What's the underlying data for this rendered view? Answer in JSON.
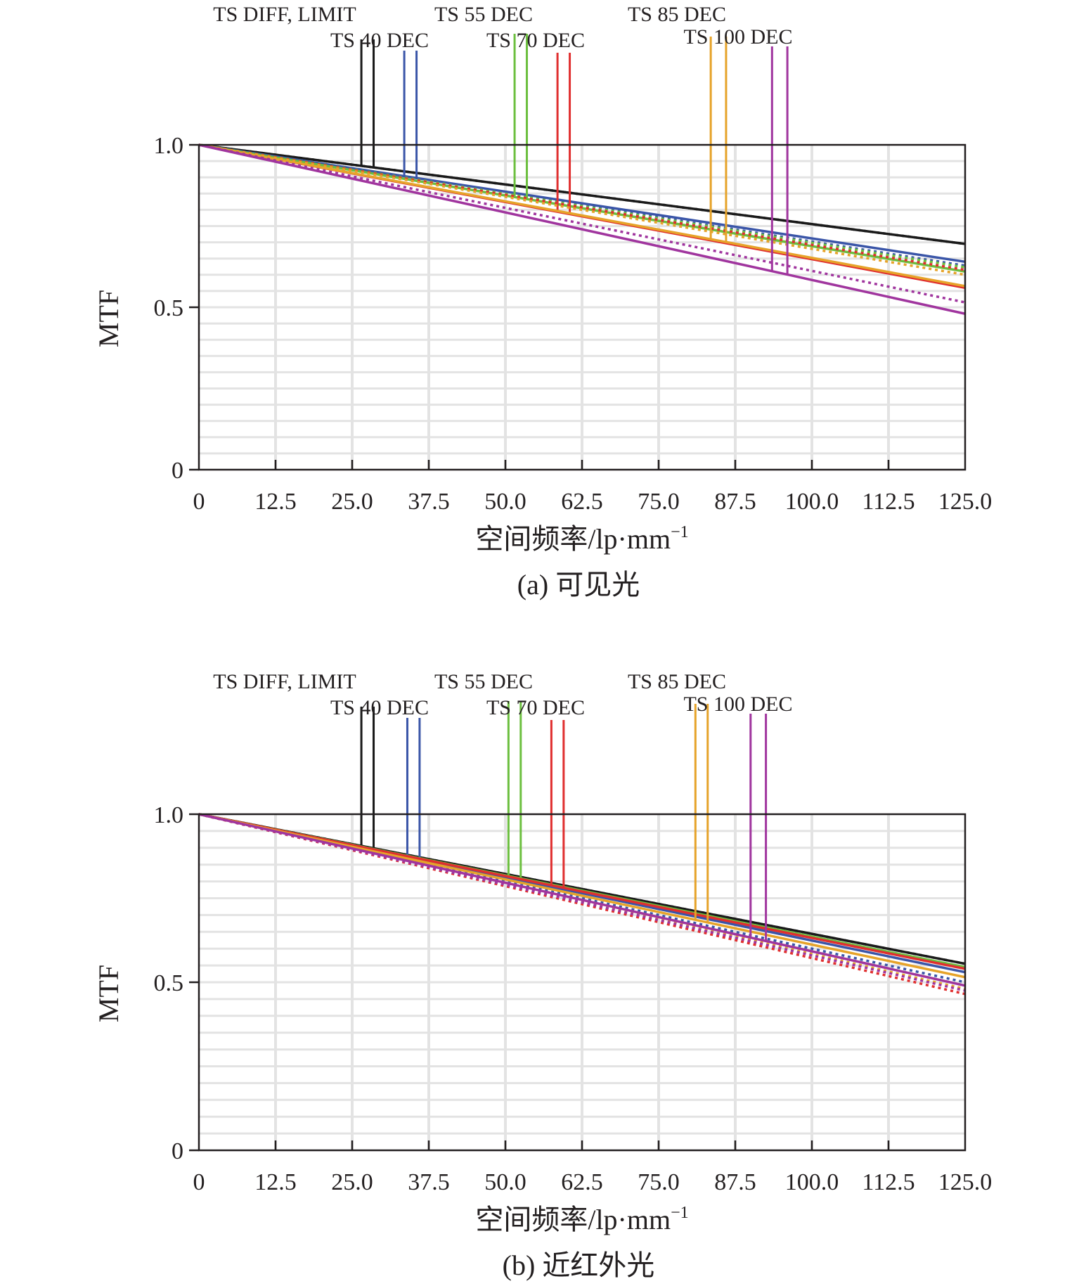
{
  "chart_data": [
    {
      "type": "line",
      "caption": "(a) 可见光",
      "xlabel": "空间频率/lp·mm",
      "xlabel_sup": "−1",
      "ylabel": "MTF",
      "xlim": [
        0,
        125
      ],
      "ylim": [
        0,
        1
      ],
      "xticks": [
        "0",
        "12.5",
        "25.0",
        "37.5",
        "50.0",
        "62.5",
        "75.0",
        "87.5",
        "100.0",
        "112.5",
        "125.0"
      ],
      "yticks": [
        {
          "value": 0,
          "label": "0"
        },
        {
          "value": 0.5,
          "label": "0.5"
        },
        {
          "value": 1,
          "label": "1.0"
        }
      ],
      "grid": true,
      "legend_placement": "top",
      "series": [
        {
          "name": "TS DIFF, LIMIT",
          "color": "#1a1a1a",
          "x": [
            0,
            125
          ],
          "tangential": [
            1.0,
            0.695
          ],
          "sagittal": [
            1.0,
            0.695
          ],
          "marker_x": [
            26.5,
            28.5
          ]
        },
        {
          "name": "TS 40 DEC",
          "color": "#3a55a8",
          "x": [
            0,
            125
          ],
          "tangential": [
            1.0,
            0.64
          ],
          "sagittal": [
            1.0,
            0.628
          ],
          "marker_x": [
            33.5,
            35.5
          ]
        },
        {
          "name": "TS 55 DEC",
          "color": "#6cbf3f",
          "x": [
            0,
            125
          ],
          "tangential": [
            1.0,
            0.61
          ],
          "sagittal": [
            1.0,
            0.623
          ],
          "marker_x": [
            51.5,
            53.5
          ]
        },
        {
          "name": "TS 70 DEC",
          "color": "#e02f2f",
          "x": [
            0,
            125
          ],
          "tangential": [
            1.0,
            0.56
          ],
          "sagittal": [
            1.0,
            0.615
          ],
          "marker_x": [
            58.5,
            60.5
          ]
        },
        {
          "name": "TS 85 DEC",
          "color": "#e6a32a",
          "x": [
            0,
            125
          ],
          "tangential": [
            1.0,
            0.565
          ],
          "sagittal": [
            1.0,
            0.6
          ],
          "marker_x": [
            83.5,
            86.0
          ]
        },
        {
          "name": "TS 100 DEC",
          "color": "#a0359e",
          "x": [
            0,
            125
          ],
          "tangential": [
            1.0,
            0.48
          ],
          "sagittal": [
            1.0,
            0.515
          ],
          "marker_x": [
            93.5,
            96.0
          ]
        }
      ]
    },
    {
      "type": "line",
      "caption": "(b) 近红外光",
      "xlabel": "空间频率/lp·mm",
      "xlabel_sup": "−1",
      "ylabel": "MTF",
      "xlim": [
        0,
        125
      ],
      "ylim": [
        0,
        1
      ],
      "xticks": [
        "0",
        "12.5",
        "25.0",
        "37.5",
        "50.0",
        "62.5",
        "75.0",
        "87.5",
        "100.0",
        "112.5",
        "125.0"
      ],
      "yticks": [
        {
          "value": 0,
          "label": "0"
        },
        {
          "value": 0.5,
          "label": "0.5"
        },
        {
          "value": 1,
          "label": "1.0"
        }
      ],
      "grid": true,
      "legend_placement": "top",
      "series": [
        {
          "name": "TS DIFF, LIMIT",
          "color": "#1a1a1a",
          "x": [
            0,
            125
          ],
          "tangential": [
            1.0,
            0.555
          ],
          "sagittal": [
            1.0,
            0.555
          ],
          "marker_x": [
            26.5,
            28.5
          ]
        },
        {
          "name": "TS 40 DEC",
          "color": "#3a55a8",
          "x": [
            0,
            125
          ],
          "tangential": [
            1.0,
            0.53
          ],
          "sagittal": [
            1.0,
            0.5
          ],
          "marker_x": [
            34.0,
            36.0
          ]
        },
        {
          "name": "TS 55 DEC",
          "color": "#6cbf3f",
          "x": [
            0,
            125
          ],
          "tangential": [
            1.0,
            0.545
          ],
          "sagittal": [
            1.0,
            0.49
          ],
          "marker_x": [
            50.5,
            52.5
          ]
        },
        {
          "name": "TS 70 DEC",
          "color": "#e02f2f",
          "x": [
            0,
            125
          ],
          "tangential": [
            1.0,
            0.54
          ],
          "sagittal": [
            1.0,
            0.465
          ],
          "marker_x": [
            57.5,
            59.5
          ]
        },
        {
          "name": "TS 85 DEC",
          "color": "#e6a32a",
          "x": [
            0,
            125
          ],
          "tangential": [
            1.0,
            0.515
          ],
          "sagittal": [
            1.0,
            0.48
          ],
          "marker_x": [
            81.0,
            83.0
          ]
        },
        {
          "name": "TS 100 DEC",
          "color": "#a0359e",
          "x": [
            0,
            125
          ],
          "tangential": [
            1.0,
            0.49
          ],
          "sagittal": [
            1.0,
            0.475
          ],
          "marker_x": [
            90.0,
            92.5
          ]
        }
      ]
    }
  ]
}
